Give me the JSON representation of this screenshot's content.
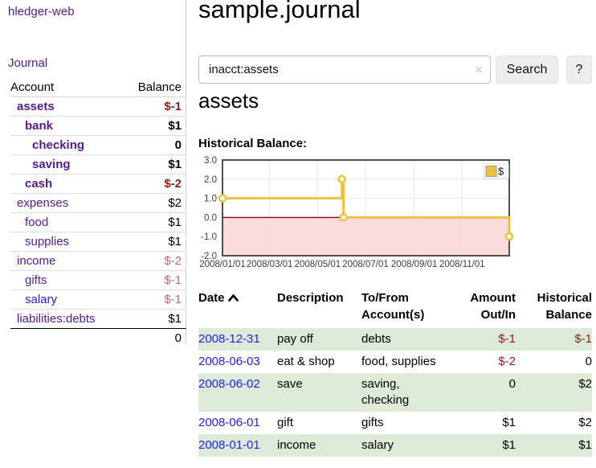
{
  "app": {
    "brand": "hledger-web",
    "nav_journal": "Journal"
  },
  "sidebar": {
    "col_account": "Account",
    "col_balance": "Balance",
    "accounts": [
      {
        "name": "assets",
        "balance": "$-1"
      },
      {
        "name": "bank",
        "balance": "$1"
      },
      {
        "name": "checking",
        "balance": "0"
      },
      {
        "name": "saving",
        "balance": "$1"
      },
      {
        "name": "cash",
        "balance": "$-2"
      },
      {
        "name": "expenses",
        "balance": "$2"
      },
      {
        "name": "food",
        "balance": "$1"
      },
      {
        "name": "supplies",
        "balance": "$1"
      },
      {
        "name": "income",
        "balance": "$-2"
      },
      {
        "name": "gifts",
        "balance": "$-1"
      },
      {
        "name": "salary",
        "balance": "$-1"
      },
      {
        "name": "liabilities:debts",
        "balance": "$1"
      }
    ],
    "total": "0"
  },
  "header": {
    "title": "sample.journal"
  },
  "search": {
    "value": "inacct:assets",
    "clear_icon": "×",
    "button_label": "Search",
    "help_label": "?"
  },
  "content": {
    "account_heading": "assets",
    "chart_label": "Historical Balance:"
  },
  "chart_data": {
    "type": "line",
    "title": "Historical Balance",
    "x_range": [
      "2008-01-01",
      "2008-12-31"
    ],
    "ylim": [
      -2,
      3
    ],
    "yticks": [
      {
        "label": "3.0",
        "value": 3
      },
      {
        "label": "2.0",
        "value": 2
      },
      {
        "label": "1.0",
        "value": 1
      },
      {
        "label": "0.0",
        "value": 0
      },
      {
        "label": "-1.0",
        "value": -1
      },
      {
        "label": "-2.0",
        "value": -2
      }
    ],
    "xticks": [
      {
        "label": "2008/01/01",
        "date": "2008-01-01"
      },
      {
        "label": "2008/03/01",
        "date": "2008-03-01"
      },
      {
        "label": "2008/05/01",
        "date": "2008-05-01"
      },
      {
        "label": "2008/07/01",
        "date": "2008-07-01"
      },
      {
        "label": "2008/09/01",
        "date": "2008-09-01"
      },
      {
        "label": "2008/11/01",
        "date": "2008-11-01"
      }
    ],
    "series": [
      {
        "name": "$",
        "color": "#edc240",
        "style": "step-after",
        "points": [
          [
            "2008-01-01",
            1
          ],
          [
            "2008-06-01",
            2
          ],
          [
            "2008-06-03",
            0
          ],
          [
            "2008-12-31",
            -1
          ]
        ]
      }
    ],
    "grid": true,
    "legend_position": "top-right",
    "negative_region_fill": "#fbdbdb",
    "zero_line_color": "#8b0000"
  },
  "register": {
    "headers": {
      "date": "Date",
      "description": "Description",
      "accounts": "To/From Account(s)",
      "amount": "Amount Out/In",
      "balance": "Historical Balance"
    },
    "rows": [
      {
        "date": "2008-12-31",
        "description": "pay off",
        "accounts": "debts",
        "amount": "$-1",
        "balance": "$-1"
      },
      {
        "date": "2008-06-03",
        "description": "eat & shop",
        "accounts": "food, supplies",
        "amount": "$-2",
        "balance": "0"
      },
      {
        "date": "2008-06-02",
        "description": "save",
        "accounts": "saving, checking",
        "amount": "0",
        "balance": "$2"
      },
      {
        "date": "2008-06-01",
        "description": "gift",
        "accounts": "gifts",
        "amount": "$1",
        "balance": "$2"
      },
      {
        "date": "2008-01-01",
        "description": "income",
        "accounts": "salary",
        "amount": "$1",
        "balance": "$1"
      }
    ]
  }
}
